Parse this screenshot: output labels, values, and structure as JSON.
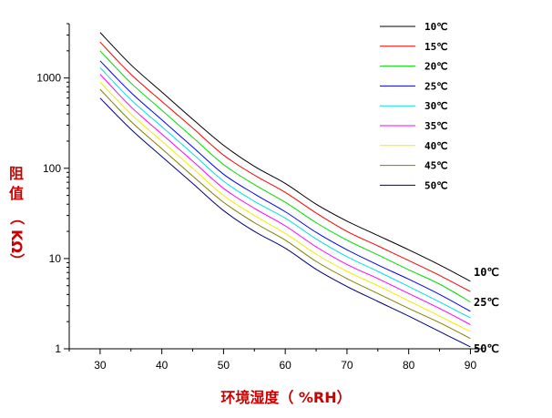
{
  "chart_data": {
    "type": "line",
    "xlabel": "环境湿度（ %RH）",
    "ylabel_chars": [
      "阻",
      "值",
      "（",
      "KΩ",
      "）"
    ],
    "x_scale": "linear",
    "y_scale": "log",
    "xlim": [
      25,
      92
    ],
    "ylim": [
      1,
      4000
    ],
    "x_ticks": [
      30,
      40,
      50,
      60,
      70,
      80,
      90
    ],
    "y_ticks": [
      {
        "value": 1,
        "label": "1"
      },
      {
        "value": 10,
        "label": "10"
      },
      {
        "value": 100,
        "label": "100"
      },
      {
        "value": 1000,
        "label": "1000"
      }
    ],
    "grid": false,
    "legend_position": "top-right",
    "x": [
      30,
      35,
      40,
      45,
      50,
      55,
      60,
      65,
      70,
      75,
      80,
      85,
      90
    ],
    "series": [
      {
        "name": "10℃",
        "color": "#000000",
        "values": [
          3200,
          1400,
          700,
          350,
          180,
          105,
          68,
          40,
          26,
          18,
          12.5,
          8.5,
          5.6
        ]
      },
      {
        "name": "15℃",
        "color": "#ff0000",
        "values": [
          2500,
          1100,
          550,
          280,
          140,
          84,
          54,
          32,
          20,
          13.8,
          9.5,
          6.5,
          4.3
        ]
      },
      {
        "name": "20℃",
        "color": "#00dd00",
        "values": [
          2000,
          880,
          440,
          220,
          110,
          66,
          42,
          25,
          16,
          11,
          7.5,
          5.2,
          3.3
        ]
      },
      {
        "name": "25℃",
        "color": "#0000ff",
        "values": [
          1550,
          690,
          345,
          172,
          86,
          52,
          33,
          19.5,
          12.5,
          8.5,
          5.9,
          4.0,
          2.6
        ]
      },
      {
        "name": "30℃",
        "color": "#00e0e0",
        "values": [
          1300,
          575,
          290,
          145,
          72,
          43,
          28,
          16.5,
          10.5,
          7.2,
          4.9,
          3.3,
          2.2
        ]
      },
      {
        "name": "35℃",
        "color": "#ff00ff",
        "values": [
          1100,
          480,
          240,
          120,
          60,
          36,
          23,
          13.5,
          8.6,
          6.0,
          4.1,
          2.8,
          1.85
        ]
      },
      {
        "name": "40℃",
        "color": "#eeee00",
        "values": [
          900,
          400,
          200,
          100,
          50,
          30,
          19,
          11.2,
          7.2,
          5.0,
          3.4,
          2.3,
          1.55
        ]
      },
      {
        "name": "45℃",
        "color": "#808000",
        "values": [
          750,
          330,
          165,
          82,
          42,
          25,
          16,
          9.3,
          6.0,
          4.1,
          2.8,
          1.95,
          1.3
        ]
      },
      {
        "name": "50℃",
        "color": "#000080",
        "values": [
          600,
          270,
          135,
          68,
          34,
          20,
          13,
          7.6,
          4.9,
          3.35,
          2.3,
          1.55,
          1.05
        ]
      }
    ],
    "end_labels": [
      {
        "series": "10℃",
        "text": "10℃"
      },
      {
        "series": "25℃",
        "text": "25℃"
      },
      {
        "series": "50℃",
        "text": "50℃"
      }
    ]
  }
}
